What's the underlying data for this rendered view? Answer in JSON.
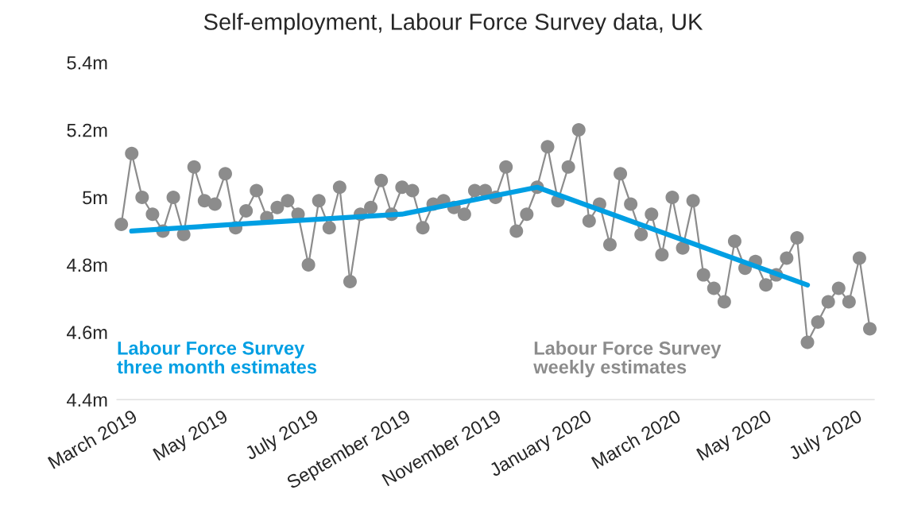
{
  "chart_data": {
    "type": "line",
    "title": "Self-employment, Labour Force Survey data, UK",
    "x": [
      "2019-02-22",
      "2019-03-01",
      "2019-03-08",
      "2019-03-15",
      "2019-03-22",
      "2019-03-29",
      "2019-04-05",
      "2019-04-12",
      "2019-04-19",
      "2019-04-26",
      "2019-05-03",
      "2019-05-10",
      "2019-05-17",
      "2019-05-24",
      "2019-05-31",
      "2019-06-07",
      "2019-06-14",
      "2019-06-21",
      "2019-06-28",
      "2019-07-05",
      "2019-07-12",
      "2019-07-19",
      "2019-07-26",
      "2019-08-02",
      "2019-08-09",
      "2019-08-16",
      "2019-08-23",
      "2019-08-30",
      "2019-09-06",
      "2019-09-13",
      "2019-09-20",
      "2019-09-27",
      "2019-10-04",
      "2019-10-11",
      "2019-10-18",
      "2019-10-25",
      "2019-11-01",
      "2019-11-08",
      "2019-11-15",
      "2019-11-22",
      "2019-11-29",
      "2019-12-06",
      "2019-12-13",
      "2019-12-20",
      "2019-12-27",
      "2020-01-03",
      "2020-01-10",
      "2020-01-17",
      "2020-01-24",
      "2020-01-31",
      "2020-02-07",
      "2020-02-14",
      "2020-02-21",
      "2020-02-28",
      "2020-03-06",
      "2020-03-13",
      "2020-03-20",
      "2020-03-27",
      "2020-04-03",
      "2020-04-10",
      "2020-04-17",
      "2020-04-24",
      "2020-05-01",
      "2020-05-08",
      "2020-05-15",
      "2020-05-22",
      "2020-05-29",
      "2020-06-05",
      "2020-06-12",
      "2020-06-19",
      "2020-06-26",
      "2020-07-03",
      "2020-07-10"
    ],
    "series": [
      {
        "name": "Labour Force Survey\nthree month estimates",
        "color": "#009fe3",
        "marker": "none",
        "x": [
          "2019-03-01",
          "2019-05-10",
          "2019-08-30",
          "2019-11-29",
          "2020-05-29"
        ],
        "values": [
          4.9,
          4.92,
          4.95,
          5.03,
          4.74
        ]
      },
      {
        "name": "Labour Force Survey\nweekly estimates",
        "color": "#8c8c8c",
        "marker": "circle",
        "values": [
          4.92,
          5.13,
          5.0,
          4.95,
          4.9,
          5.0,
          4.89,
          5.09,
          4.99,
          4.98,
          5.07,
          4.91,
          4.96,
          5.02,
          4.94,
          4.97,
          4.99,
          4.95,
          4.8,
          4.99,
          4.91,
          5.03,
          4.75,
          4.95,
          4.97,
          5.05,
          4.95,
          5.03,
          5.02,
          4.91,
          4.98,
          4.99,
          4.97,
          4.95,
          5.02,
          5.02,
          5.0,
          5.09,
          4.9,
          4.95,
          5.03,
          5.15,
          4.99,
          5.09,
          5.2,
          4.93,
          4.98,
          4.86,
          5.07,
          4.98,
          4.89,
          4.95,
          4.83,
          5.0,
          4.85,
          4.99,
          4.77,
          4.73,
          4.69,
          4.87,
          4.79,
          4.81,
          4.74,
          4.77,
          4.82,
          4.88,
          4.57,
          4.63,
          4.69,
          4.73,
          4.69,
          4.82,
          4.61
        ]
      }
    ],
    "xlim": [
      "2019-02-19",
      "2020-07-13"
    ],
    "xticks": [
      {
        "value": "2019-03-01",
        "label": "March 2019"
      },
      {
        "value": "2019-05-01",
        "label": "May 2019"
      },
      {
        "value": "2019-07-01",
        "label": "July 2019"
      },
      {
        "value": "2019-09-01",
        "label": "September 2019"
      },
      {
        "value": "2019-11-01",
        "label": "November 2019"
      },
      {
        "value": "2020-01-01",
        "label": "January 2020"
      },
      {
        "value": "2020-03-01",
        "label": "March 2020"
      },
      {
        "value": "2020-05-01",
        "label": "May 2020"
      },
      {
        "value": "2020-07-01",
        "label": "July 2020"
      }
    ],
    "ylim": [
      4.4,
      5.4
    ],
    "yticks": [
      {
        "value": 4.4,
        "label": "4.4m"
      },
      {
        "value": 4.6,
        "label": "4.6m"
      },
      {
        "value": 4.8,
        "label": "4.8m"
      },
      {
        "value": 5.0,
        "label": "5m"
      },
      {
        "value": 5.2,
        "label": "5.2m"
      },
      {
        "value": 5.4,
        "label": "5.4m"
      }
    ],
    "grid": false,
    "legend": false,
    "line_style": "solid"
  }
}
